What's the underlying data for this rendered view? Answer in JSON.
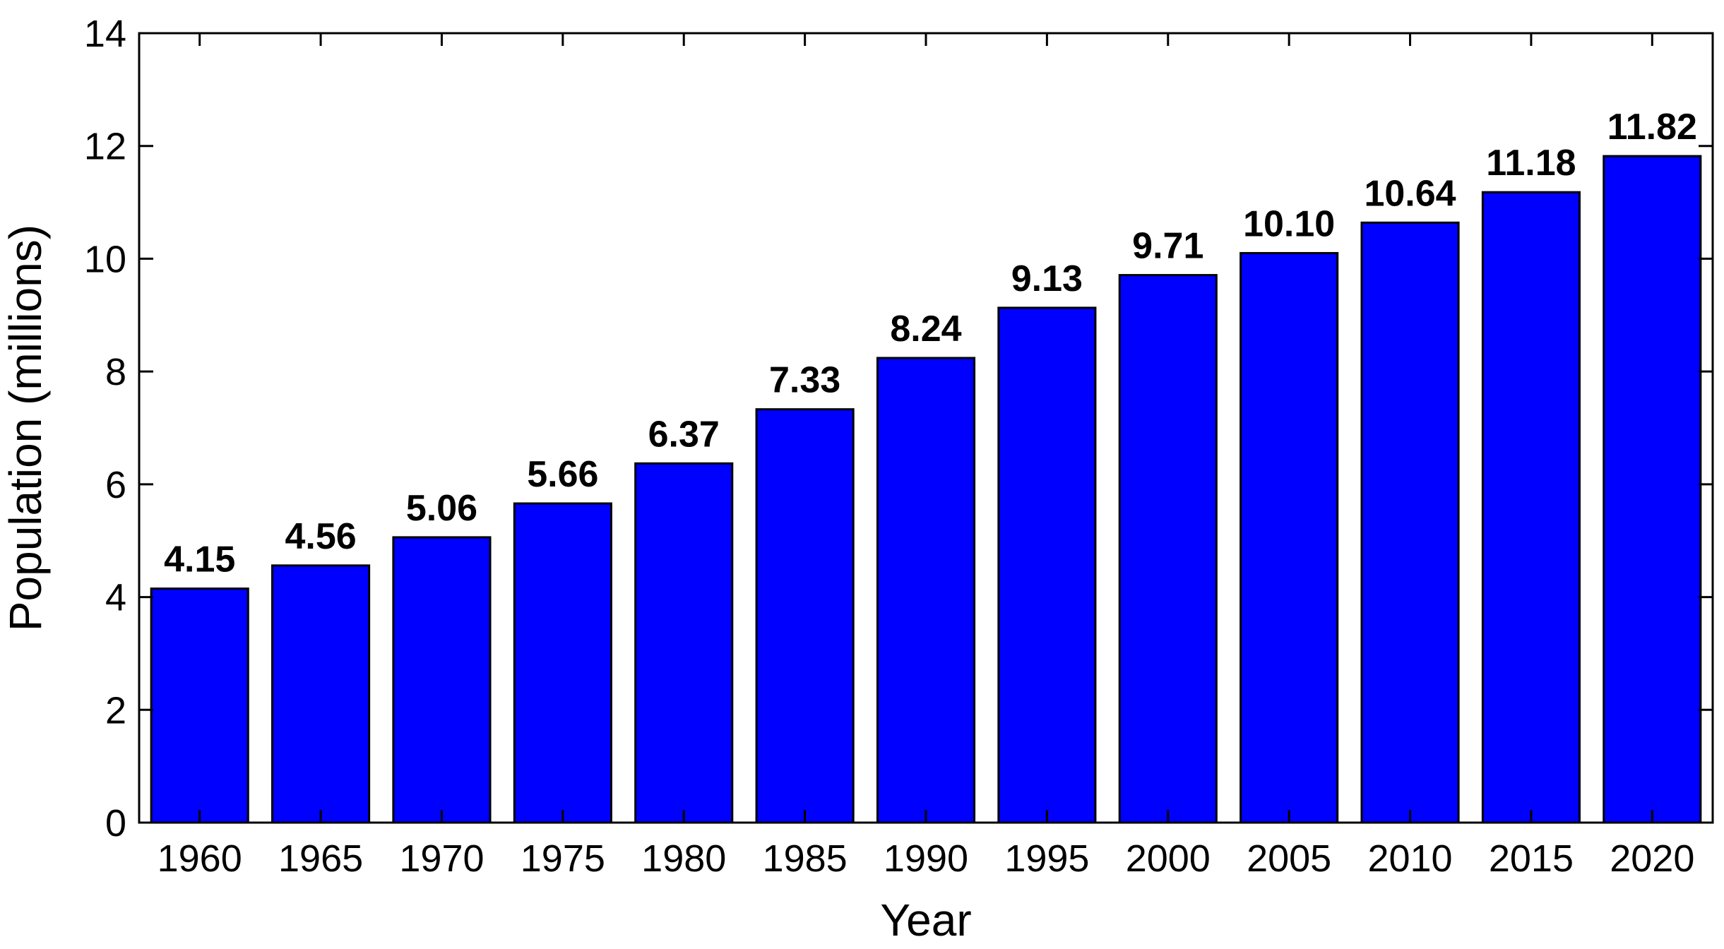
{
  "chart_data": {
    "type": "bar",
    "categories": [
      "1960",
      "1965",
      "1970",
      "1975",
      "1980",
      "1985",
      "1990",
      "1995",
      "2000",
      "2005",
      "2010",
      "2015",
      "2020"
    ],
    "values": [
      4.15,
      4.56,
      5.06,
      5.66,
      6.37,
      7.33,
      8.24,
      9.13,
      9.71,
      10.1,
      10.64,
      11.18,
      11.82
    ],
    "data_labels": [
      "4.15",
      "4.56",
      "5.06",
      "5.66",
      "6.37",
      "7.33",
      "8.24",
      "9.13",
      "9.71",
      "10.10",
      "10.64",
      "11.18",
      "11.82"
    ],
    "title": "",
    "xlabel": "Year",
    "ylabel": "Population (millions)",
    "ylim": [
      0,
      14
    ],
    "yticks": [
      0,
      2,
      4,
      6,
      8,
      10,
      12,
      14
    ],
    "bar_color": "#0000ff",
    "grid": false,
    "legend": "none"
  }
}
